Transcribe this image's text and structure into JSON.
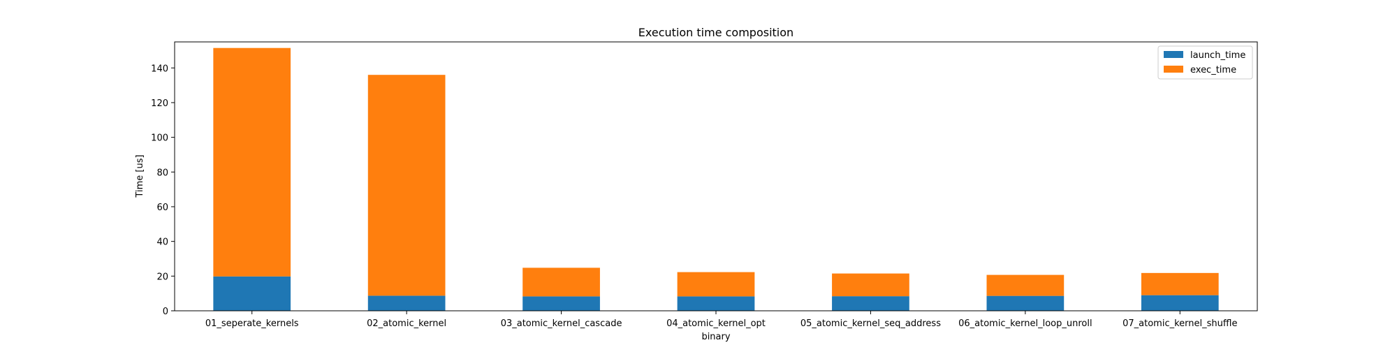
{
  "chart_data": {
    "type": "bar",
    "stacked": true,
    "title": "Execution time composition",
    "xlabel": "binary",
    "ylabel": "Time [us]",
    "ylim": [
      0,
      155
    ],
    "yticks": [
      0,
      20,
      40,
      60,
      80,
      100,
      120,
      140
    ],
    "grid": false,
    "legend": "top-right",
    "categories": [
      "01_seperate_kernels",
      "02_atomic_kernel",
      "03_atomic_kernel_cascade",
      "04_atomic_kernel_opt",
      "05_atomic_kernel_seq_address",
      "06_atomic_kernel_loop_unroll",
      "07_atomic_kernel_shuffle"
    ],
    "series": [
      {
        "name": "launch_time",
        "color": "#1f77b4",
        "values": [
          19.8,
          8.7,
          8.3,
          8.3,
          8.4,
          8.6,
          9.0
        ]
      },
      {
        "name": "exec_time",
        "color": "#ff7f0e",
        "values": [
          131.7,
          127.3,
          16.5,
          14.0,
          13.1,
          12.1,
          12.8
        ]
      }
    ]
  }
}
